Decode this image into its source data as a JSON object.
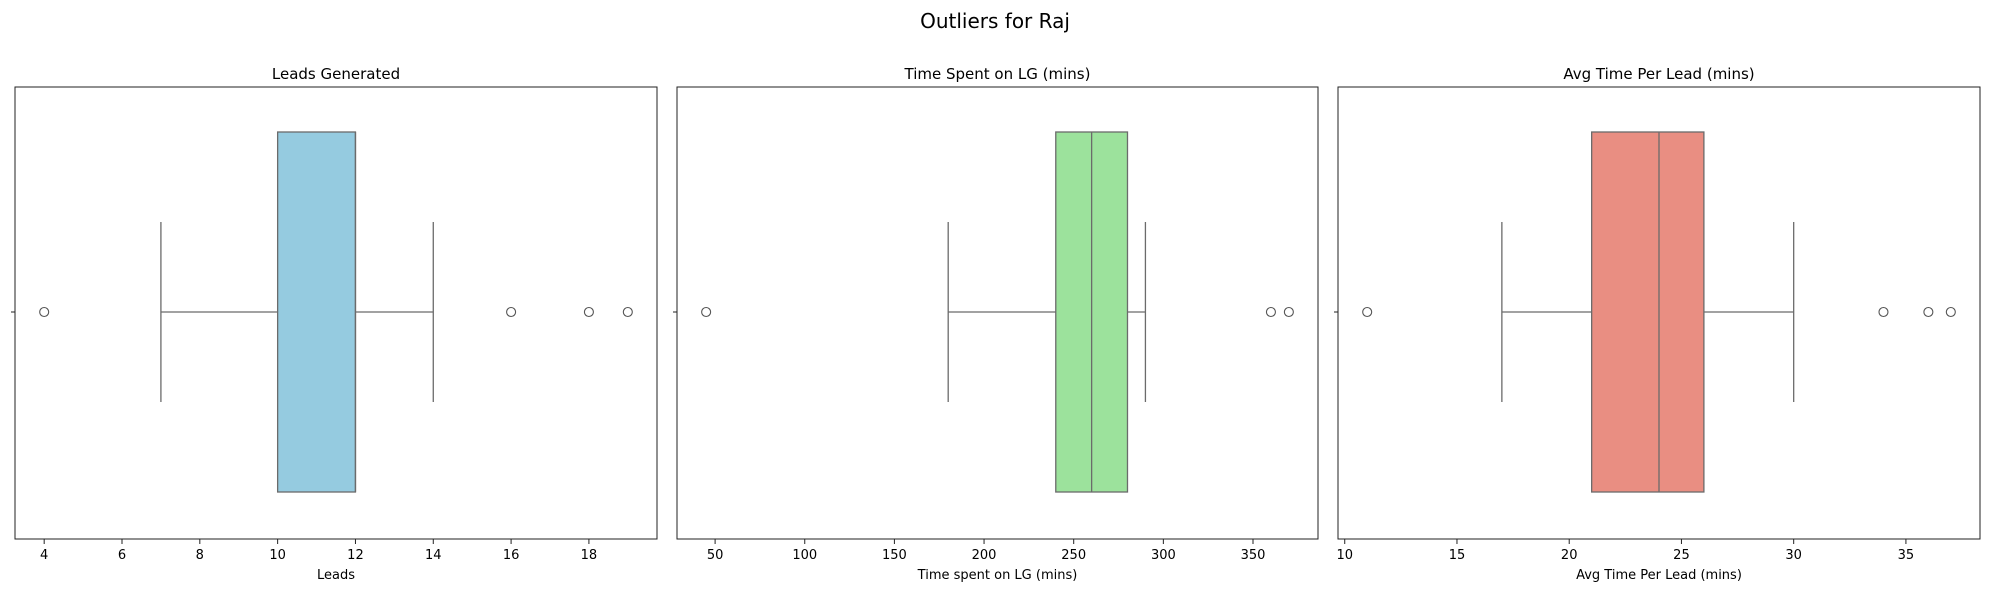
{
  "figure": {
    "title": "Outliers for Raj"
  },
  "colors": {
    "box_line": "#6b6b6b",
    "frame": "#222222"
  },
  "chart_data": [
    {
      "type": "box",
      "title": "Leads Generated",
      "xlabel": "Leads",
      "xlim": [
        3.25,
        19.75
      ],
      "xticks": [
        4,
        6,
        8,
        10,
        12,
        14,
        16,
        18
      ],
      "color": "#95cbe0",
      "stats": {
        "whisker_low": 7,
        "q1": 10,
        "median": 12,
        "q3": 12,
        "whisker_high": 14
      },
      "outliers": [
        4,
        16,
        18,
        19
      ]
    },
    {
      "type": "box",
      "title": "Time Spent on LG (mins)",
      "xlabel": "Time spent on LG (mins)",
      "xlim": [
        28.75,
        386.25
      ],
      "xticks": [
        50,
        100,
        150,
        200,
        250,
        300,
        350
      ],
      "color": "#9ce29c",
      "stats": {
        "whisker_low": 180,
        "q1": 240,
        "median": 260,
        "q3": 280,
        "whisker_high": 290
      },
      "outliers": [
        45,
        360,
        370
      ]
    },
    {
      "type": "box",
      "title": "Avg Time Per Lead (mins)",
      "xlabel": "Avg Time Per Lead (mins)",
      "xlim": [
        9.7,
        38.3
      ],
      "xticks": [
        10,
        15,
        20,
        25,
        30,
        35
      ],
      "color": "#e98e82",
      "stats": {
        "whisker_low": 17,
        "q1": 21,
        "median": 24,
        "q3": 26,
        "whisker_high": 30
      },
      "outliers": [
        11,
        34,
        36,
        37
      ]
    }
  ]
}
